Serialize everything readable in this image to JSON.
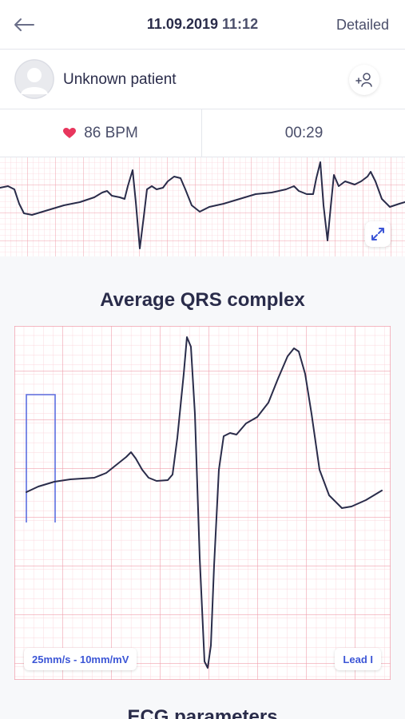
{
  "header": {
    "date": "11.09.2019",
    "time": "11:12",
    "detailed_label": "Detailed"
  },
  "patient": {
    "name": "Unknown patient"
  },
  "stats": {
    "bpm": "86 BPM",
    "duration": "00:29"
  },
  "qrs": {
    "title": "Average QRS complex",
    "scale_label": "25mm/s - 10mm/mV",
    "lead_label": "Lead I"
  },
  "next_section": {
    "title": "ECG parameters"
  },
  "colors": {
    "grid_major": "#f0a0ad",
    "grid_minor": "#fbe0e4",
    "trace": "#2a2c4a",
    "accent": "#3c56d6",
    "heart": "#e8365d"
  },
  "icons": [
    "back-arrow-icon",
    "avatar-icon",
    "add-person-icon",
    "heart-icon",
    "expand-icon"
  ]
}
